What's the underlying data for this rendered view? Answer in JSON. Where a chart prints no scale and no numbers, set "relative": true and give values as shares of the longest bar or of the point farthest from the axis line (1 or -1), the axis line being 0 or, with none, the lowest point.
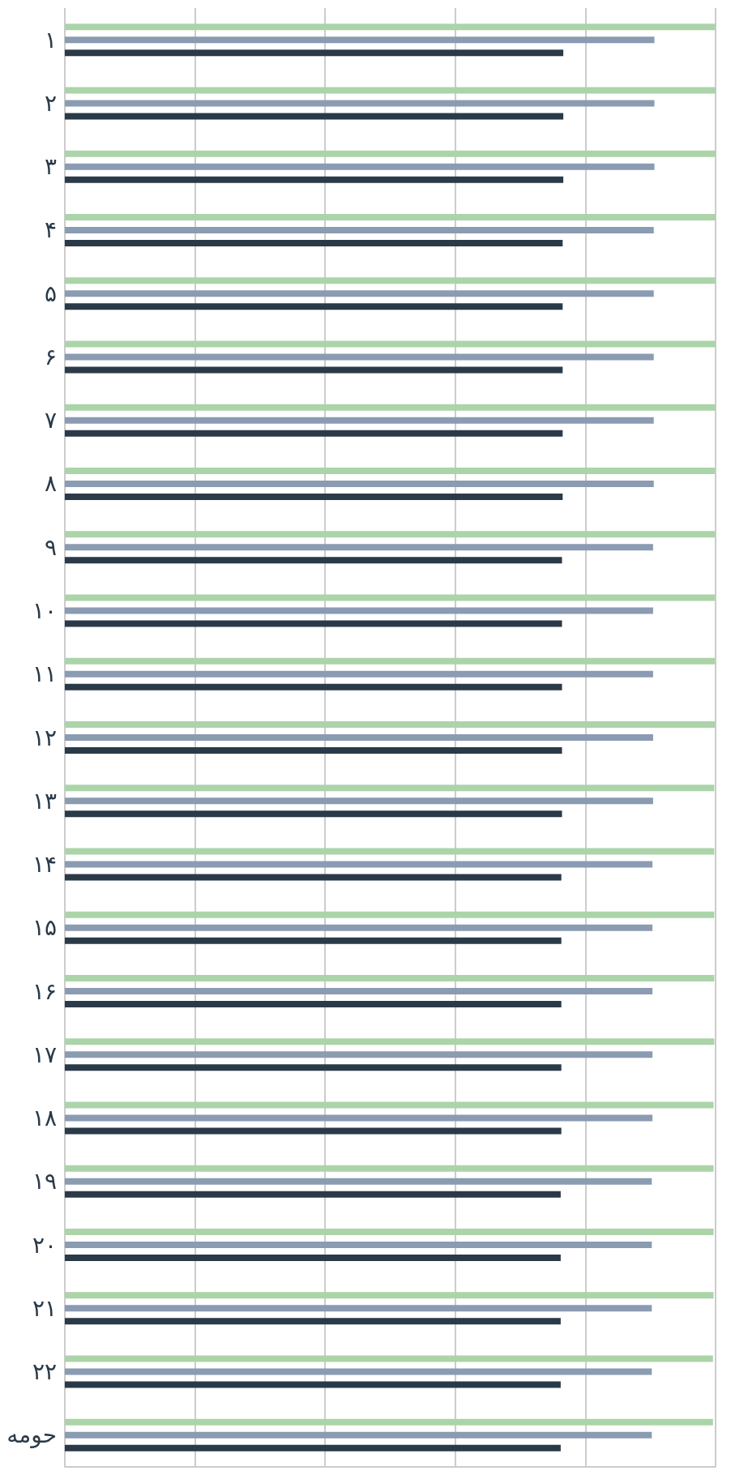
{
  "chart_data": {
    "type": "bar",
    "orientation": "horizontal",
    "relative": true,
    "grid": "x",
    "categories": [
      "۱",
      "۲",
      "۳",
      "۴",
      "۵",
      "۶",
      "۷",
      "۸",
      "۹",
      "۱۰",
      "۱۱",
      "۱۲",
      "۱۳",
      "۱۴",
      "۱۵",
      "۱۶",
      "۱۷",
      "۱۸",
      "۱۹",
      "۲۰",
      "۲۱",
      "۲۲",
      "حومه"
    ],
    "series": [
      {
        "color": "#abd4a9",
        "values": [
          1,
          1,
          1,
          1,
          1,
          1,
          1,
          0.999,
          0.999,
          0.999,
          0.999,
          0.999,
          0.998,
          0.998,
          0.998,
          0.998,
          0.998,
          0.997,
          0.997,
          0.997,
          0.997,
          0.996,
          0.996
        ]
      },
      {
        "color": "#8a9bb2",
        "values": [
          0.906,
          0.906,
          0.906,
          0.905,
          0.905,
          0.905,
          0.905,
          0.905,
          0.904,
          0.904,
          0.904,
          0.904,
          0.904,
          0.903,
          0.903,
          0.903,
          0.903,
          0.903,
          0.902,
          0.902,
          0.902,
          0.902,
          0.902
        ]
      },
      {
        "color": "#2a3a48",
        "values": [
          0.766,
          0.766,
          0.766,
          0.765,
          0.765,
          0.765,
          0.765,
          0.765,
          0.764,
          0.764,
          0.764,
          0.764,
          0.764,
          0.763,
          0.763,
          0.763,
          0.763,
          0.763,
          0.762,
          0.762,
          0.762,
          0.762,
          0.762
        ]
      }
    ]
  }
}
